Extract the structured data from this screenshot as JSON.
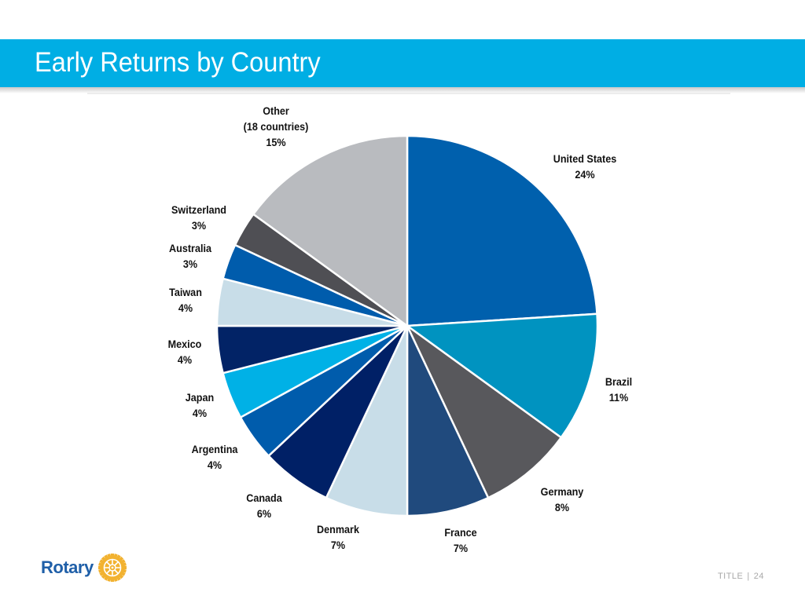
{
  "slide": {
    "title": "Early Returns by Country",
    "footer_label": "TITLE",
    "footer_separator": "|",
    "page_number": "24"
  },
  "logo": {
    "wordmark": "Rotary",
    "icon": "rotary-wheel-icon"
  },
  "colors": {
    "title_bar": "#00aee4",
    "slice_separator": "#ffffff"
  },
  "chart_data": {
    "type": "pie",
    "title": "",
    "start_angle_deg": 0,
    "direction": "clockwise",
    "unit": "%",
    "slices": [
      {
        "label": "United States",
        "value": 24,
        "display": "24%",
        "color": "#0060ad"
      },
      {
        "label": "Brazil",
        "value": 11,
        "display": "11%",
        "color": "#0093c0"
      },
      {
        "label": "Germany",
        "value": 8,
        "display": "8%",
        "color": "#58585c"
      },
      {
        "label": "France",
        "value": 7,
        "display": "7%",
        "color": "#204a7d"
      },
      {
        "label": "Denmark",
        "value": 7,
        "display": "7%",
        "color": "#c8dde8"
      },
      {
        "label": "Canada",
        "value": 6,
        "display": "6%",
        "color": "#002066"
      },
      {
        "label": "Argentina",
        "value": 4,
        "display": "4%",
        "color": "#005cac"
      },
      {
        "label": "Japan",
        "value": 4,
        "display": "4%",
        "color": "#00b1e6"
      },
      {
        "label": "Mexico",
        "value": 4,
        "display": "4%",
        "color": "#022366"
      },
      {
        "label": "Taiwan",
        "value": 4,
        "display": "4%",
        "color": "#c8dde8"
      },
      {
        "label": "Australia",
        "value": 3,
        "display": "3%",
        "color": "#005cac"
      },
      {
        "label": "Switzerland",
        "value": 3,
        "display": "3%",
        "color": "#4f4f54"
      },
      {
        "label": "Other\n(18 countries)",
        "value": 15,
        "display": "15%",
        "color": "#b9bbbf"
      }
    ]
  }
}
